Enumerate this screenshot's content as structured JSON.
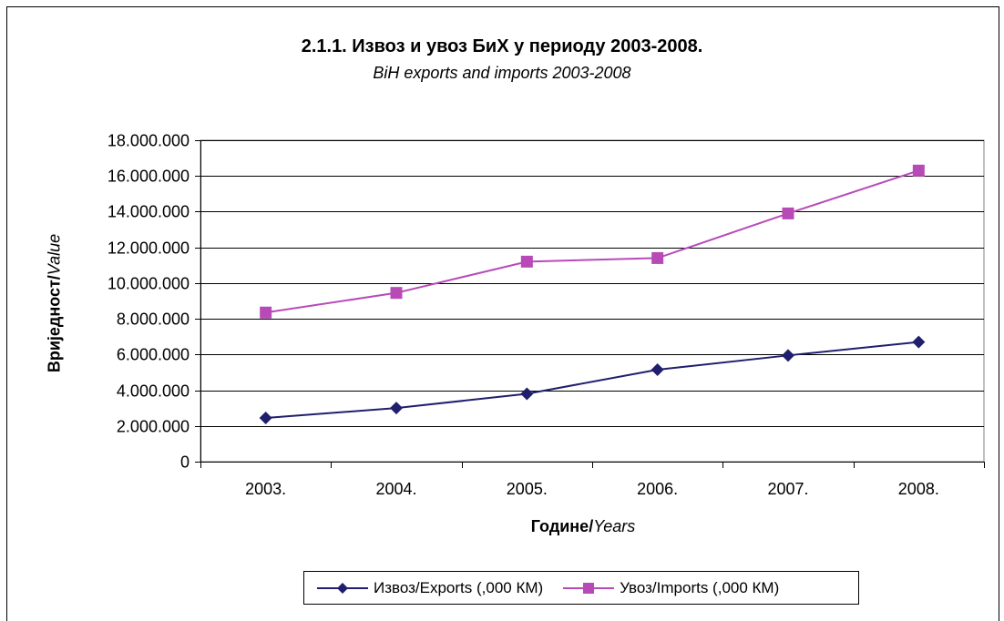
{
  "chart_data": {
    "type": "line",
    "title": "2.1.1. Извоз и увоз БиХ у периоду 2003-2008.",
    "subtitle": "BiH exports and imports 2003-2008",
    "xlabel_bold": "Године/",
    "xlabel_italic": "Years",
    "ylabel_bold": "Вриједност/",
    "ylabel_italic": "Value",
    "categories": [
      "2003.",
      "2004.",
      "2005.",
      "2006.",
      "2007.",
      "2008."
    ],
    "ylim": [
      0,
      18000000
    ],
    "yticks": [
      "0",
      "2.000.000",
      "4.000.000",
      "6.000.000",
      "8.000.000",
      "10.000.000",
      "12.000.000",
      "14.000.000",
      "16.000.000",
      "18.000.000"
    ],
    "grid": true,
    "legend_position": "bottom",
    "series": [
      {
        "name": "Извоз/Exports (,000 КМ)",
        "color": "#1f1f6e",
        "marker": "diamond",
        "values": [
          2450000,
          3000000,
          3800000,
          5150000,
          5950000,
          6700000
        ]
      },
      {
        "name": "Увоз/Imports (,000 КМ)",
        "color": "#b84ab8",
        "marker": "square",
        "values": [
          8350000,
          9450000,
          11200000,
          11400000,
          13900000,
          16300000
        ]
      }
    ]
  }
}
